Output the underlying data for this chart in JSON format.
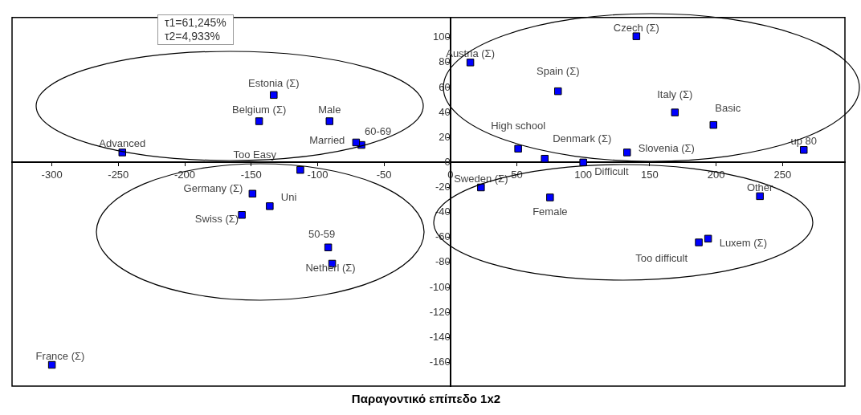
{
  "chart_data": {
    "type": "scatter",
    "title": "Παραγοντικό επίπεδο 1x2",
    "annotations": [
      "τ1=61,245%",
      "τ2=4,933%"
    ],
    "xlim": [
      -330,
      297
    ],
    "ylim": [
      -179,
      116
    ],
    "xticks": [
      -300,
      -250,
      -200,
      -150,
      -100,
      -50,
      0,
      50,
      100,
      150,
      200,
      250
    ],
    "yticks": [
      -160,
      -140,
      -120,
      -100,
      -80,
      -60,
      -40,
      -20,
      0,
      20,
      40,
      60,
      80,
      100
    ],
    "grid": false,
    "legend": false,
    "marker": "square",
    "series": [
      {
        "name": "France (Σ)",
        "color": "#0000ff",
        "x": [
          -300
        ],
        "values": [
          -162
        ]
      },
      {
        "name": "Advanced",
        "color": "#0000ff",
        "x": [
          -247
        ],
        "values": [
          8
        ]
      },
      {
        "name": "Estonia (Σ)",
        "color": "#0000ff",
        "x": [
          -133
        ],
        "values": [
          54
        ]
      },
      {
        "name": "Belgium (Σ)",
        "color": "#0000ff",
        "x": [
          -144
        ],
        "values": [
          33
        ]
      },
      {
        "name": "Male",
        "color": "#0000ff",
        "x": [
          -91
        ],
        "values": [
          33
        ]
      },
      {
        "name": "Married",
        "color": "#0000ff",
        "x": [
          -71
        ],
        "values": [
          16
        ]
      },
      {
        "name": "60-69",
        "color": "#0000ff",
        "x": [
          -67
        ],
        "values": [
          14
        ]
      },
      {
        "name": "Too Easy",
        "color": "#0000ff",
        "x": [
          -113
        ],
        "values": [
          -6
        ]
      },
      {
        "name": "Germany (Σ)",
        "color": "#0000ff",
        "x": [
          -149
        ],
        "values": [
          -25
        ]
      },
      {
        "name": "Uni",
        "color": "#0000ff",
        "x": [
          -136
        ],
        "values": [
          -35
        ]
      },
      {
        "name": "Swiss (Σ)",
        "color": "#0000ff",
        "x": [
          -157
        ],
        "values": [
          -42
        ]
      },
      {
        "name": "50-59",
        "color": "#0000ff",
        "x": [
          -92
        ],
        "values": [
          -68
        ]
      },
      {
        "name": "Netherl (Σ)",
        "color": "#0000ff",
        "x": [
          -89
        ],
        "values": [
          -81
        ]
      },
      {
        "name": "Austria (Σ)",
        "color": "#0000ff",
        "x": [
          15
        ],
        "values": [
          80
        ]
      },
      {
        "name": "Czech (Σ)",
        "color": "#0000ff",
        "x": [
          140
        ],
        "values": [
          101
        ]
      },
      {
        "name": "Spain (Σ)",
        "color": "#0000ff",
        "x": [
          81
        ],
        "values": [
          57
        ]
      },
      {
        "name": "Italy (Σ)",
        "color": "#0000ff",
        "x": [
          169
        ],
        "values": [
          40
        ]
      },
      {
        "name": "Basic",
        "color": "#0000ff",
        "x": [
          198
        ],
        "values": [
          30
        ]
      },
      {
        "name": "High school",
        "color": "#0000ff",
        "x": [
          51
        ],
        "values": [
          11
        ]
      },
      {
        "name": "Denmark (Σ)",
        "color": "#0000ff",
        "x": [
          71
        ],
        "values": [
          3
        ]
      },
      {
        "name": "Difficult",
        "color": "#0000ff",
        "x": [
          100
        ],
        "values": [
          0
        ]
      },
      {
        "name": "Slovenia (Σ)",
        "color": "#0000ff",
        "x": [
          133
        ],
        "values": [
          8
        ]
      },
      {
        "name": "up 80",
        "color": "#0000ff",
        "x": [
          266
        ],
        "values": [
          10
        ]
      },
      {
        "name": "Sweden (Σ)",
        "color": "#0000ff",
        "x": [
          23
        ],
        "values": [
          -20
        ]
      },
      {
        "name": "Female",
        "color": "#0000ff",
        "x": [
          75
        ],
        "values": [
          -28
        ]
      },
      {
        "name": "Other",
        "color": "#0000ff",
        "x": [
          233
        ],
        "values": [
          -27
        ]
      },
      {
        "name": "Too difficult",
        "color": "#0000ff",
        "x": [
          187
        ],
        "values": [
          -64
        ]
      },
      {
        "name": "Luxem (Σ)",
        "color": "#0000ff",
        "x": [
          194
        ],
        "values": [
          -61
        ]
      }
    ]
  }
}
